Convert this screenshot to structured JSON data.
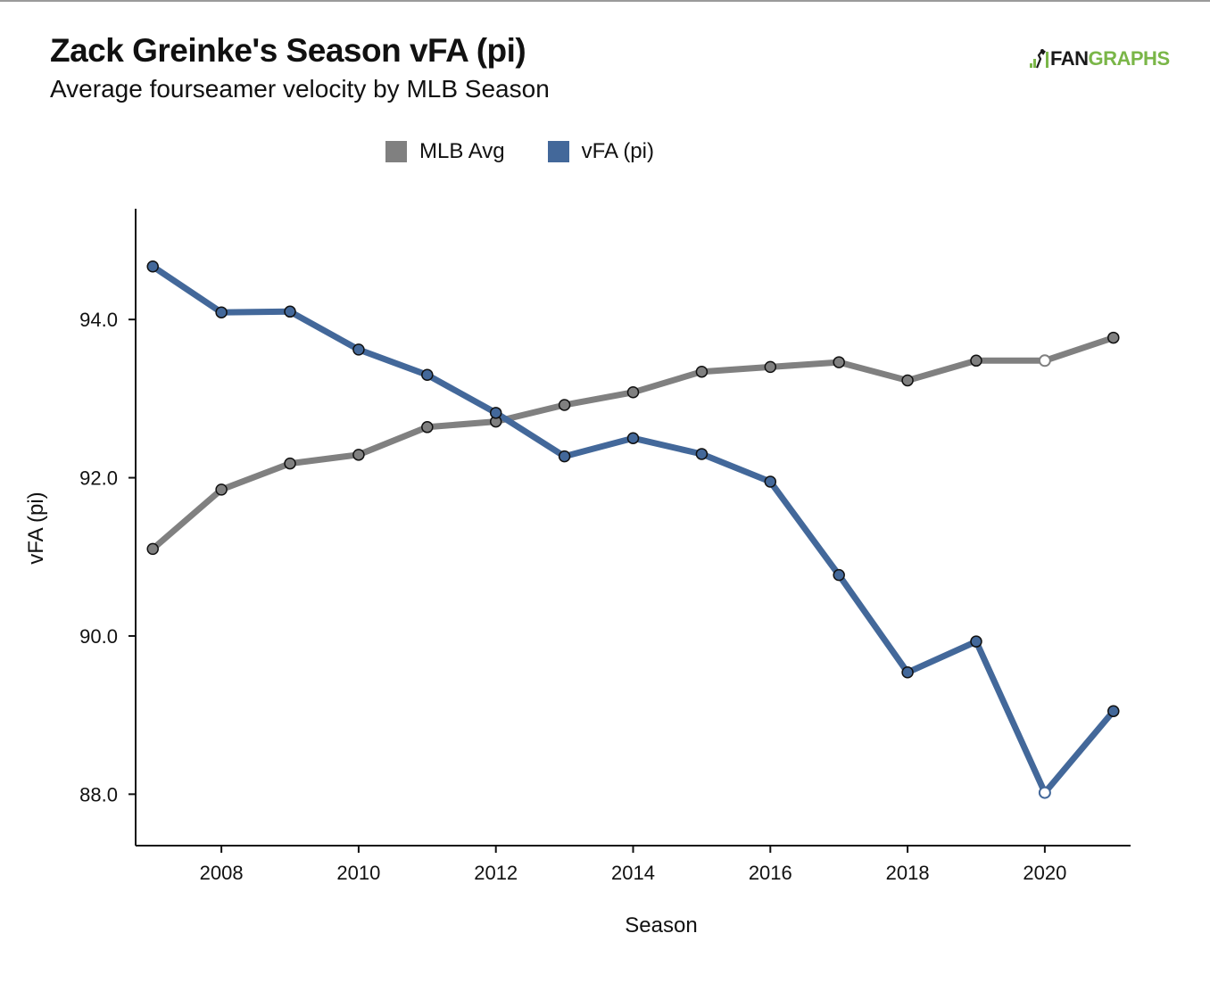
{
  "header": {
    "title": "Zack Greinke's Season vFA (pi)",
    "subtitle": "Average fourseamer velocity by MLB Season",
    "logo_part_a": "FAN",
    "logo_part_b": "GRAPHS"
  },
  "colors": {
    "mlb_avg": "#808080",
    "vfa": "#43689a",
    "logo_green": "#7ab648"
  },
  "chart_data": {
    "type": "line",
    "title": "Zack Greinke's Season vFA (pi)",
    "subtitle": "Average fourseamer velocity by MLB Season",
    "xlabel": "Season",
    "ylabel": "vFA (pi)",
    "xlim": [
      2006.75,
      2021.25
    ],
    "ylim": [
      87.35,
      95.4
    ],
    "x_ticks": [
      2008,
      2010,
      2012,
      2014,
      2016,
      2018,
      2020
    ],
    "x_tick_labels": [
      "2008",
      "2010",
      "2012",
      "2014",
      "2016",
      "2018",
      "2020"
    ],
    "y_ticks": [
      88.0,
      90.0,
      92.0,
      94.0
    ],
    "y_tick_labels": [
      "88.0",
      "90.0",
      "92.0",
      "94.0"
    ],
    "legend_position": "top-center",
    "grid": false,
    "x": [
      2007,
      2008,
      2009,
      2010,
      2011,
      2012,
      2013,
      2014,
      2015,
      2016,
      2017,
      2018,
      2019,
      2020,
      2021
    ],
    "series": [
      {
        "name": "MLB Avg",
        "color": "#808080",
        "values": [
          91.1,
          91.85,
          92.18,
          92.29,
          92.64,
          92.71,
          92.92,
          93.08,
          93.34,
          93.4,
          93.46,
          93.23,
          93.48,
          93.48,
          93.77
        ],
        "hollow_points": [
          2020
        ]
      },
      {
        "name": "vFA (pi)",
        "color": "#43689a",
        "values": [
          94.67,
          94.09,
          94.1,
          93.62,
          93.3,
          92.82,
          92.27,
          92.5,
          92.3,
          91.95,
          90.77,
          89.54,
          89.93,
          88.02,
          89.05
        ],
        "hollow_points": [
          2020
        ]
      }
    ]
  }
}
